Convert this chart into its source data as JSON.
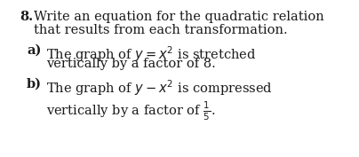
{
  "background_color": "#ffffff",
  "text_color": "#1a1a1a",
  "q_num": "8.",
  "q_text1": "Write an equation for the quadratic relation",
  "q_text2": "that results from each transformation.",
  "a_label": "a)",
  "a_line1_pre": "The graph of ",
  "a_line1_math": "y = x²",
  "a_line1_post": " is stretched",
  "a_line2": "vertically by a factor of 8.",
  "b_label": "b)",
  "b_line1_pre": "The graph of ",
  "b_line1_math": "y − x²",
  "b_line1_post": " is compressed",
  "b_line2_pre": "vertically by a factor of ",
  "b_frac": "\\frac{1}{5}",
  "b_period": ".",
  "fs": 10.5,
  "fs_math": 10.5
}
